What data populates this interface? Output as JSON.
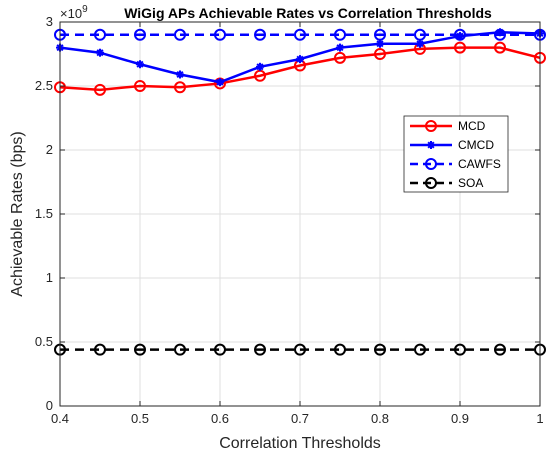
{
  "chart_data": {
    "type": "line",
    "title": "WiGig APs Achievable Rates vs Correlation Thresholds",
    "xlabel": "Correlation Thresholds",
    "ylabel": "Achievable Rates (bps)",
    "y_exponent_label": "×10",
    "y_exponent_power": "9",
    "xlim": [
      0.4,
      1
    ],
    "ylim": [
      0,
      3
    ],
    "grid": true,
    "legend_position": "right",
    "x_ticks": [
      "0.4",
      "0.5",
      "0.6",
      "0.7",
      "0.8",
      "0.9",
      "1"
    ],
    "y_ticks": [
      "0",
      "0.5",
      "1",
      "1.5",
      "2",
      "2.5",
      "3"
    ],
    "x": [
      0.4,
      0.45,
      0.5,
      0.55,
      0.6,
      0.65,
      0.7,
      0.75,
      0.8,
      0.85,
      0.9,
      0.95,
      1.0
    ],
    "series": [
      {
        "name": "MCD",
        "color": "#ff0000",
        "dash": "solid",
        "marker": "circle",
        "values": [
          2.49,
          2.47,
          2.5,
          2.49,
          2.52,
          2.58,
          2.66,
          2.72,
          2.75,
          2.79,
          2.8,
          2.8,
          2.72
        ]
      },
      {
        "name": "CMCD",
        "color": "#0000ff",
        "dash": "solid",
        "marker": "asterisk",
        "values": [
          2.8,
          2.76,
          2.67,
          2.59,
          2.53,
          2.65,
          2.71,
          2.8,
          2.83,
          2.83,
          2.89,
          2.92,
          2.91
        ]
      },
      {
        "name": "CAWFS",
        "color": "#0000ff",
        "dash": "dashed",
        "marker": "circle",
        "values": [
          2.9,
          2.9,
          2.9,
          2.9,
          2.9,
          2.9,
          2.9,
          2.9,
          2.9,
          2.9,
          2.9,
          2.9,
          2.9
        ]
      },
      {
        "name": "SOA",
        "color": "#000000",
        "dash": "dashed",
        "marker": "circle",
        "values": [
          0.44,
          0.44,
          0.44,
          0.44,
          0.44,
          0.44,
          0.44,
          0.44,
          0.44,
          0.44,
          0.44,
          0.44,
          0.44
        ]
      }
    ]
  }
}
